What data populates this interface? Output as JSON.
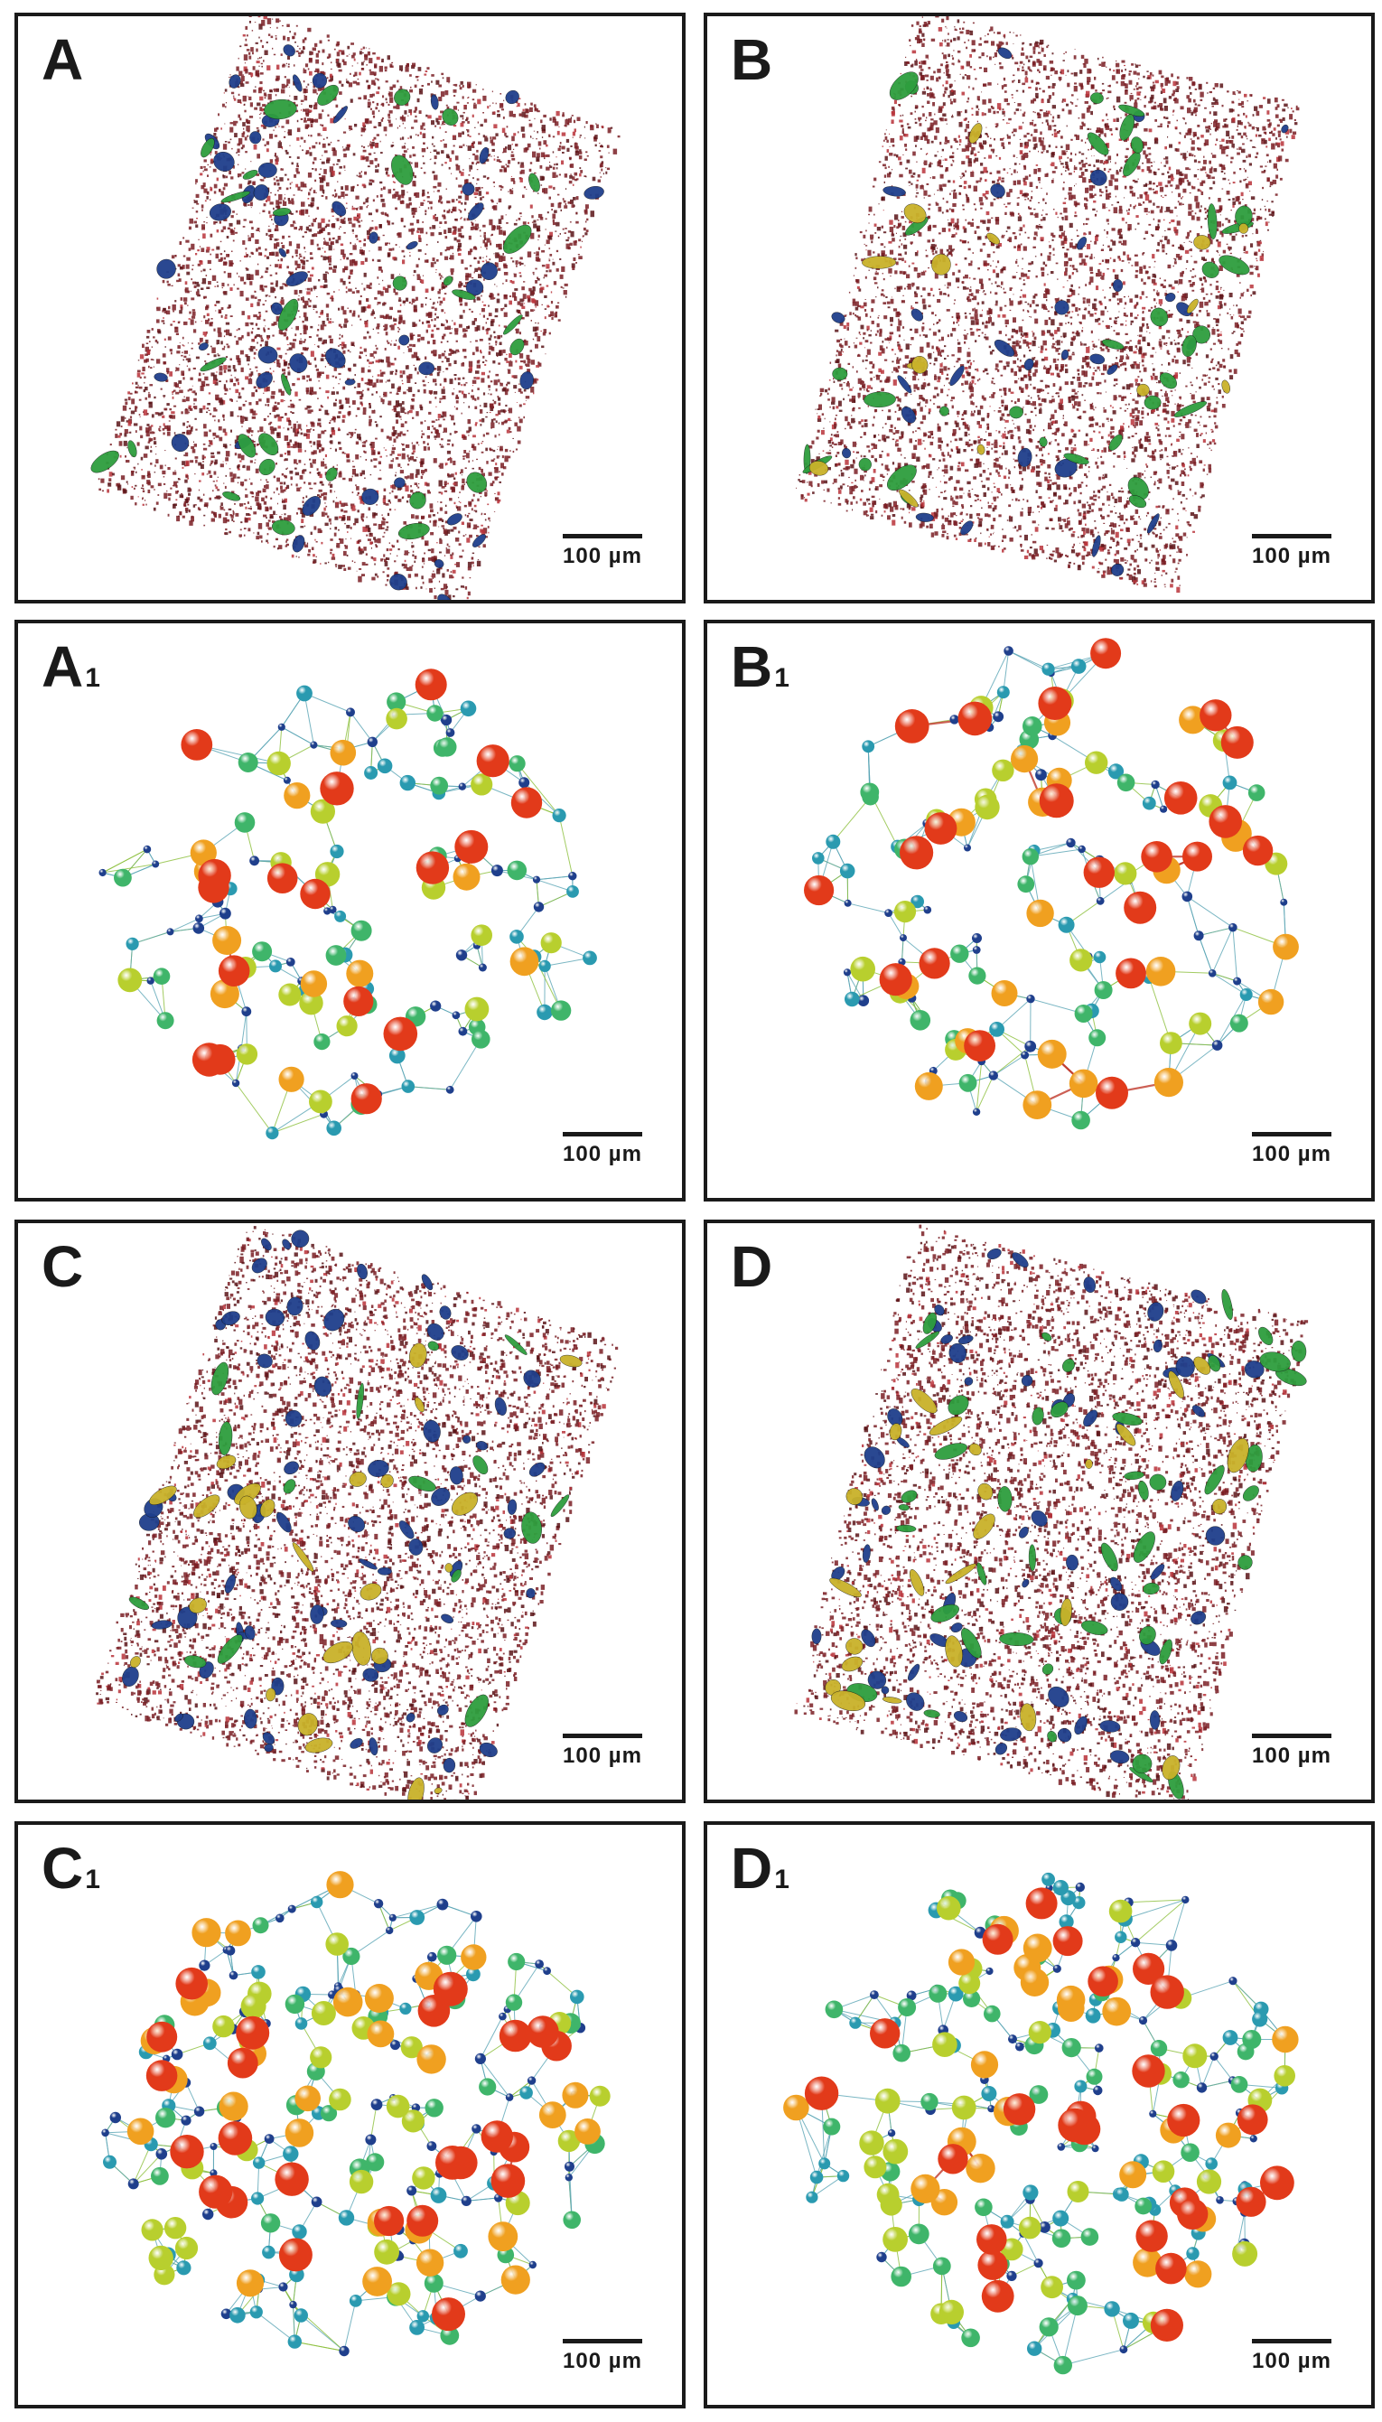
{
  "panels": [
    {
      "key": "A",
      "letter": "A",
      "sub": "",
      "type": "pore",
      "seed": 11,
      "green": 0.06,
      "yellow": 0.0,
      "blue": 0.1
    },
    {
      "key": "B",
      "letter": "B",
      "sub": "",
      "type": "pore",
      "seed": 23,
      "green": 0.07,
      "yellow": 0.03,
      "blue": 0.06
    },
    {
      "key": "A1",
      "letter": "A",
      "sub": "1",
      "type": "network",
      "seed": 37,
      "nodes": 140
    },
    {
      "key": "B1",
      "letter": "B",
      "sub": "1",
      "type": "network",
      "seed": 41,
      "nodes": 150
    },
    {
      "key": "C",
      "letter": "C",
      "sub": "",
      "type": "pore",
      "seed": 53,
      "green": 0.03,
      "yellow": 0.05,
      "blue": 0.14
    },
    {
      "key": "D",
      "letter": "D",
      "sub": "",
      "type": "pore",
      "seed": 67,
      "green": 0.09,
      "yellow": 0.05,
      "blue": 0.12
    },
    {
      "key": "C1",
      "letter": "C",
      "sub": "1",
      "type": "network",
      "seed": 79,
      "nodes": 230
    },
    {
      "key": "D1",
      "letter": "D",
      "sub": "1",
      "type": "network",
      "seed": 83,
      "nodes": 220
    }
  ],
  "scale_label": "100 µm",
  "colors": {
    "matrix_pore": "#7a1f24",
    "blue_cluster": "#1f3f8c",
    "green_cluster": "#2e9e3e",
    "yellow_cluster": "#c9b22a",
    "node_ramp": [
      "#1f3f8c",
      "#2a9ab0",
      "#3fb56a",
      "#b8cf2e",
      "#f0a020",
      "#e23a1a"
    ]
  }
}
